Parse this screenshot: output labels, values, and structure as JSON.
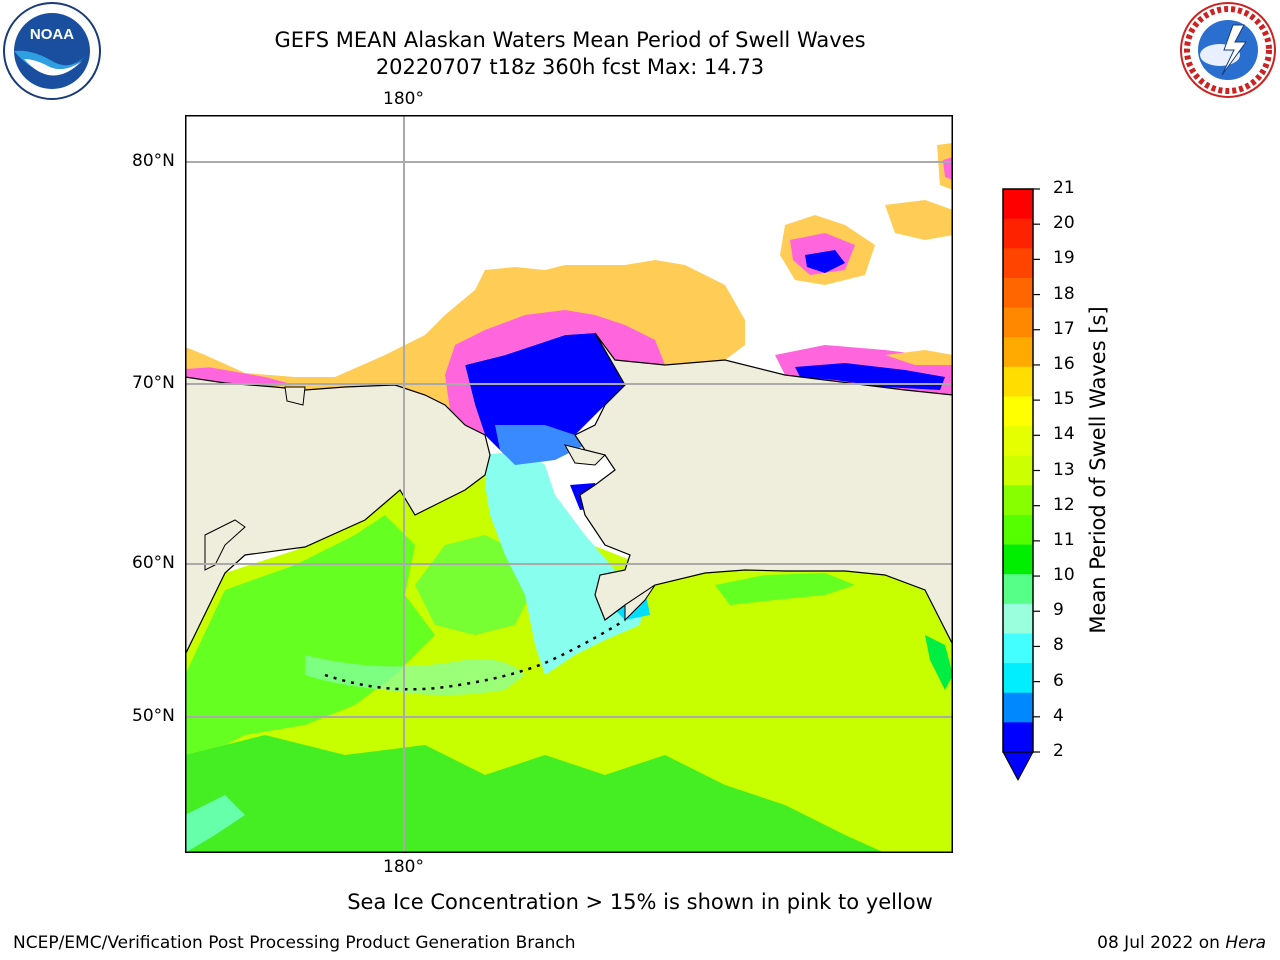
{
  "title": {
    "line1": "GEFS MEAN Alaskan Waters Mean Period of Swell Waves",
    "line2": "20220707 t18z 360h fcst   Max: 14.73"
  },
  "map": {
    "lon_labels": {
      "top": "180°",
      "bottom": "180°"
    },
    "lat_labels": [
      "80°N",
      "70°N",
      "60°N",
      "50°N"
    ],
    "colors": {
      "land": "#efeddc",
      "ocean_main": "#c8ff00",
      "gridline": "#aaaaaa",
      "ice_pink": "#ff66dd",
      "ice_yellow": "#ffcc55",
      "frame": "#000000"
    }
  },
  "colorbar": {
    "title": "Mean Period of Swell Waves [s]",
    "ticks": [
      "21",
      "20",
      "19",
      "18",
      "17",
      "16",
      "15",
      "14",
      "13",
      "12",
      "11",
      "10",
      "9",
      "8",
      "6",
      "4",
      "2"
    ],
    "colors": [
      "#ff0000",
      "#ff2200",
      "#ff4400",
      "#ff6600",
      "#ff8800",
      "#ffaa00",
      "#ffdd00",
      "#ffff00",
      "#e6ff00",
      "#ccff00",
      "#88ff00",
      "#55ff00",
      "#00ee00",
      "#55ff88",
      "#99ffdd",
      "#44ffff",
      "#00eeff",
      "#0088ff",
      "#0000ff"
    ]
  },
  "caption": "Sea Ice Concentration > 15% is shown in pink to yellow",
  "footer": {
    "left": "NCEP/EMC/Verification Post Processing Product Generation Branch",
    "right_prefix": "08 Jul 2022 on ",
    "right_host": "Hera"
  },
  "logos": {
    "noaa": "NOAA",
    "nws": "NATIONAL WEATHER SERVICE"
  }
}
